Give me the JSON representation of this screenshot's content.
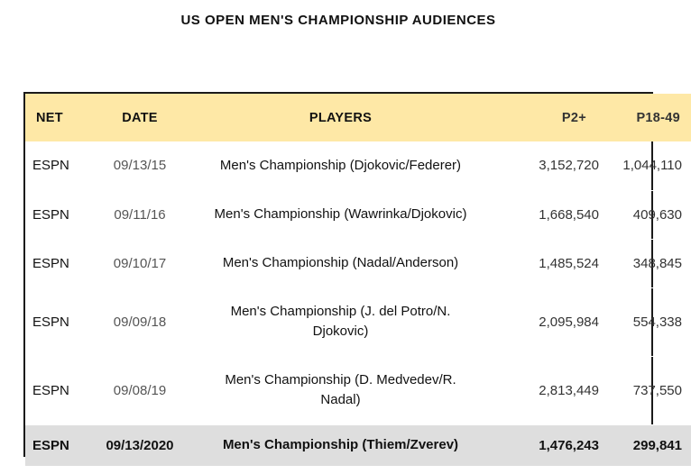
{
  "title": "US OPEN MEN'S CHAMPIONSHIP AUDIENCES",
  "columns": [
    "NET",
    "DATE",
    "PLAYERS",
    "P2+",
    "P18-49"
  ],
  "rows": [
    {
      "net": "ESPN",
      "date": "09/13/15",
      "players": "Men's Championship (Djokovic/Federer)",
      "p2": "3,152,720",
      "p18": "1,044,110"
    },
    {
      "net": "ESPN",
      "date": "09/11/16",
      "players": "Men's Championship (Wawrinka/Djokovic)",
      "p2": "1,668,540",
      "p18": "409,630"
    },
    {
      "net": "ESPN",
      "date": "09/10/17",
      "players": "Men's Championship (Nadal/Anderson)",
      "p2": "1,485,524",
      "p18": "348,845"
    },
    {
      "net": "ESPN",
      "date": "09/09/18",
      "players": "Men's Championship (J. del Potro/N. Djokovic)",
      "p2": "2,095,984",
      "p18": "554,338"
    },
    {
      "net": "ESPN",
      "date": "09/08/19",
      "players": "Men's Championship (D. Medvedev/R. Nadal)",
      "p2": "2,813,449",
      "p18": "737,550"
    },
    {
      "net": "ESPN",
      "date": "09/13/2020",
      "players": "Men's Championship (Thiem/Zverev)",
      "p2": "1,476,243",
      "p18": "299,841"
    }
  ],
  "colors": {
    "header_bg": "#fee8a6",
    "highlight_bg": "#dedede",
    "border": "#1a1a1a"
  }
}
